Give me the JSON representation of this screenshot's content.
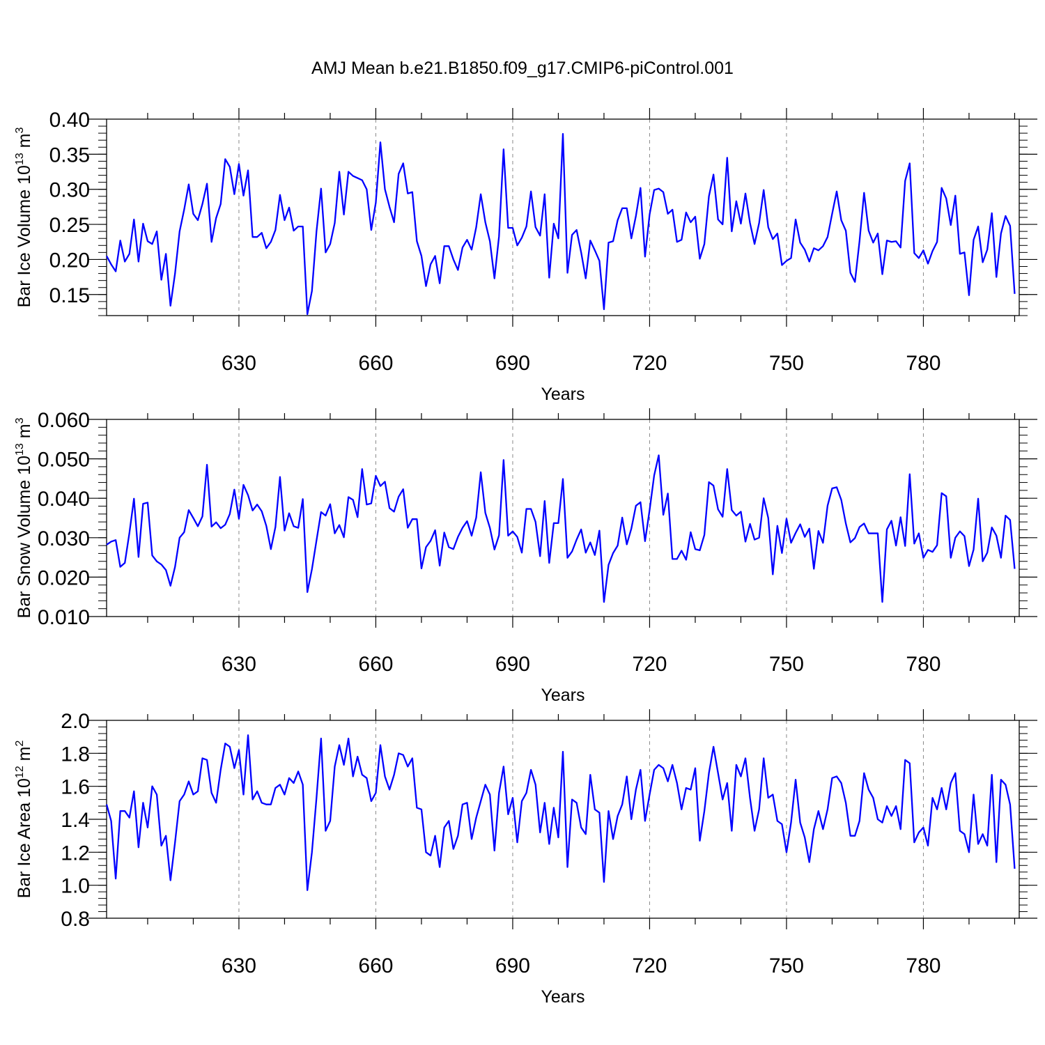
{
  "title": "AMJ Mean b.e21.B1850.f09_g17.CMIP6-piControl.001",
  "chart_data": [
    {
      "type": "line",
      "ylabel": {
        "prefix": "Bar Ice Volume 10",
        "exponent": "13",
        "unit": " m",
        "unit_exponent": "3"
      },
      "xlabel": "Years",
      "xlim": [
        601,
        801
      ],
      "ylim": [
        0.12,
        0.4
      ],
      "x_ticks": [
        630,
        660,
        690,
        720,
        750,
        780
      ],
      "x_tick_labels": [
        "630",
        "660",
        "690",
        "720",
        "750",
        "780"
      ],
      "y_ticks": [
        0.15,
        0.2,
        0.25,
        0.3,
        0.35,
        0.4
      ],
      "y_tick_labels": [
        "0.15",
        "0.20",
        "0.25",
        "0.30",
        "0.35",
        "0.40"
      ],
      "x_start": 601,
      "series": [
        {
          "name": "Bar Ice Volume",
          "color": "#0000ff",
          "values": [
            0.205,
            0.193,
            0.183,
            0.227,
            0.197,
            0.208,
            0.257,
            0.197,
            0.251,
            0.226,
            0.222,
            0.24,
            0.171,
            0.208,
            0.134,
            0.18,
            0.24,
            0.271,
            0.307,
            0.265,
            0.256,
            0.279,
            0.308,
            0.225,
            0.259,
            0.279,
            0.343,
            0.332,
            0.293,
            0.336,
            0.291,
            0.327,
            0.232,
            0.232,
            0.238,
            0.216,
            0.225,
            0.242,
            0.292,
            0.256,
            0.274,
            0.241,
            0.247,
            0.247,
            0.122,
            0.155,
            0.24,
            0.301,
            0.21,
            0.222,
            0.252,
            0.325,
            0.264,
            0.325,
            0.319,
            0.316,
            0.313,
            0.3,
            0.242,
            0.281,
            0.367,
            0.3,
            0.275,
            0.253,
            0.322,
            0.337,
            0.294,
            0.296,
            0.226,
            0.205,
            0.162,
            0.193,
            0.205,
            0.166,
            0.219,
            0.219,
            0.2,
            0.185,
            0.217,
            0.228,
            0.214,
            0.246,
            0.293,
            0.253,
            0.226,
            0.173,
            0.233,
            0.357,
            0.245,
            0.245,
            0.22,
            0.231,
            0.247,
            0.297,
            0.246,
            0.234,
            0.293,
            0.174,
            0.251,
            0.23,
            0.379,
            0.181,
            0.235,
            0.242,
            0.21,
            0.173,
            0.227,
            0.213,
            0.198,
            0.129,
            0.224,
            0.226,
            0.256,
            0.273,
            0.273,
            0.23,
            0.262,
            0.302,
            0.204,
            0.264,
            0.299,
            0.301,
            0.296,
            0.265,
            0.271,
            0.225,
            0.228,
            0.267,
            0.253,
            0.261,
            0.201,
            0.222,
            0.29,
            0.321,
            0.257,
            0.25,
            0.345,
            0.24,
            0.283,
            0.251,
            0.294,
            0.252,
            0.222,
            0.252,
            0.299,
            0.246,
            0.229,
            0.237,
            0.192,
            0.198,
            0.202,
            0.257,
            0.224,
            0.214,
            0.197,
            0.216,
            0.213,
            0.219,
            0.232,
            0.265,
            0.297,
            0.256,
            0.241,
            0.181,
            0.168,
            0.226,
            0.295,
            0.241,
            0.224,
            0.237,
            0.179,
            0.227,
            0.225,
            0.226,
            0.217,
            0.312,
            0.337,
            0.209,
            0.202,
            0.213,
            0.194,
            0.212,
            0.225,
            0.302,
            0.287,
            0.249,
            0.291,
            0.208,
            0.21,
            0.149,
            0.228,
            0.247,
            0.196,
            0.214,
            0.266,
            0.175,
            0.237,
            0.262,
            0.248,
            0.151
          ]
        }
      ]
    },
    {
      "type": "line",
      "ylabel": {
        "prefix": "Bar Snow Volume 10",
        "exponent": "13",
        "unit": " m",
        "unit_exponent": "3"
      },
      "xlabel": "Years",
      "xlim": [
        601,
        801
      ],
      "ylim": [
        0.01,
        0.06
      ],
      "x_ticks": [
        630,
        660,
        690,
        720,
        750,
        780
      ],
      "x_tick_labels": [
        "630",
        "660",
        "690",
        "720",
        "750",
        "780"
      ],
      "y_ticks": [
        0.01,
        0.02,
        0.03,
        0.04,
        0.05,
        0.06
      ],
      "y_tick_labels": [
        "0.010",
        "0.020",
        "0.030",
        "0.040",
        "0.050",
        "0.060"
      ],
      "x_start": 601,
      "series": [
        {
          "name": "Bar Snow Volume",
          "color": "#0000ff",
          "values": [
            0.0282,
            0.029,
            0.0294,
            0.0226,
            0.0236,
            0.0312,
            0.0399,
            0.0251,
            0.0386,
            0.0389,
            0.0255,
            0.024,
            0.0232,
            0.0218,
            0.0178,
            0.0226,
            0.03,
            0.0314,
            0.037,
            0.035,
            0.0329,
            0.0354,
            0.0485,
            0.0328,
            0.0339,
            0.0324,
            0.0333,
            0.036,
            0.0422,
            0.0348,
            0.0434,
            0.0408,
            0.0369,
            0.0384,
            0.0367,
            0.033,
            0.0271,
            0.0327,
            0.0454,
            0.0318,
            0.0362,
            0.0329,
            0.0325,
            0.0398,
            0.0162,
            0.022,
            0.0293,
            0.0365,
            0.0356,
            0.0385,
            0.0311,
            0.0332,
            0.0301,
            0.0403,
            0.0396,
            0.0352,
            0.0474,
            0.0384,
            0.0387,
            0.0457,
            0.0431,
            0.0442,
            0.0375,
            0.0366,
            0.0404,
            0.0423,
            0.0325,
            0.0347,
            0.0347,
            0.0222,
            0.0276,
            0.0292,
            0.0319,
            0.0229,
            0.0313,
            0.0276,
            0.0271,
            0.0302,
            0.0325,
            0.0342,
            0.0305,
            0.0351,
            0.0466,
            0.0363,
            0.0325,
            0.027,
            0.0306,
            0.0497,
            0.0305,
            0.0316,
            0.0302,
            0.0262,
            0.0373,
            0.0373,
            0.034,
            0.0253,
            0.0393,
            0.0236,
            0.0337,
            0.0337,
            0.0449,
            0.0249,
            0.0265,
            0.0295,
            0.0321,
            0.0262,
            0.0288,
            0.0256,
            0.0318,
            0.0137,
            0.0231,
            0.0261,
            0.028,
            0.0351,
            0.0283,
            0.0323,
            0.0381,
            0.039,
            0.0291,
            0.037,
            0.0458,
            0.0509,
            0.0358,
            0.0412,
            0.0246,
            0.0246,
            0.0267,
            0.0244,
            0.0314,
            0.0271,
            0.0268,
            0.0307,
            0.0441,
            0.0432,
            0.0372,
            0.0353,
            0.0474,
            0.037,
            0.0356,
            0.0366,
            0.029,
            0.0335,
            0.0295,
            0.03,
            0.04,
            0.035,
            0.0207,
            0.033,
            0.0261,
            0.0348,
            0.0287,
            0.0312,
            0.0334,
            0.0302,
            0.0323,
            0.0221,
            0.0317,
            0.0287,
            0.0381,
            0.0425,
            0.0428,
            0.0396,
            0.0336,
            0.0288,
            0.0299,
            0.0327,
            0.0336,
            0.0311,
            0.0311,
            0.0311,
            0.0137,
            0.0321,
            0.0343,
            0.028,
            0.0352,
            0.0279,
            0.0461,
            0.0285,
            0.0311,
            0.0249,
            0.0269,
            0.0264,
            0.0281,
            0.0413,
            0.0405,
            0.0249,
            0.03,
            0.0316,
            0.0304,
            0.0228,
            0.027,
            0.0399,
            0.024,
            0.0262,
            0.0326,
            0.0305,
            0.0249,
            0.0356,
            0.0345,
            0.0221
          ]
        }
      ]
    },
    {
      "type": "line",
      "ylabel": {
        "prefix": "Bar Ice Area 10",
        "exponent": "12",
        "unit": " m",
        "unit_exponent": "2"
      },
      "xlabel": "Years",
      "xlim": [
        601,
        801
      ],
      "ylim": [
        0.8,
        2.0
      ],
      "x_ticks": [
        630,
        660,
        690,
        720,
        750,
        780
      ],
      "x_tick_labels": [
        "630",
        "660",
        "690",
        "720",
        "750",
        "780"
      ],
      "y_ticks": [
        0.8,
        1.0,
        1.2,
        1.4,
        1.6,
        1.8,
        2.0
      ],
      "y_tick_labels": [
        "0.8",
        "1.0",
        "1.2",
        "1.4",
        "1.6",
        "1.8",
        "2.0"
      ],
      "x_start": 601,
      "series": [
        {
          "name": "Bar Ice Area",
          "color": "#0000ff",
          "values": [
            1.49,
            1.39,
            1.04,
            1.45,
            1.45,
            1.41,
            1.57,
            1.23,
            1.5,
            1.35,
            1.6,
            1.55,
            1.24,
            1.3,
            1.03,
            1.26,
            1.51,
            1.55,
            1.63,
            1.55,
            1.57,
            1.77,
            1.76,
            1.56,
            1.5,
            1.7,
            1.86,
            1.84,
            1.71,
            1.82,
            1.55,
            1.91,
            1.52,
            1.57,
            1.5,
            1.49,
            1.49,
            1.59,
            1.61,
            1.55,
            1.65,
            1.62,
            1.69,
            1.61,
            0.97,
            1.2,
            1.53,
            1.89,
            1.33,
            1.39,
            1.72,
            1.85,
            1.73,
            1.89,
            1.66,
            1.78,
            1.67,
            1.65,
            1.51,
            1.56,
            1.85,
            1.66,
            1.58,
            1.67,
            1.8,
            1.79,
            1.72,
            1.77,
            1.47,
            1.46,
            1.2,
            1.18,
            1.3,
            1.11,
            1.35,
            1.39,
            1.22,
            1.3,
            1.49,
            1.5,
            1.28,
            1.41,
            1.51,
            1.61,
            1.55,
            1.21,
            1.56,
            1.72,
            1.43,
            1.53,
            1.26,
            1.51,
            1.56,
            1.7,
            1.61,
            1.32,
            1.5,
            1.25,
            1.47,
            1.29,
            1.81,
            1.11,
            1.52,
            1.5,
            1.35,
            1.31,
            1.67,
            1.46,
            1.44,
            1.02,
            1.45,
            1.28,
            1.42,
            1.49,
            1.66,
            1.4,
            1.58,
            1.7,
            1.39,
            1.55,
            1.7,
            1.73,
            1.71,
            1.63,
            1.73,
            1.62,
            1.46,
            1.59,
            1.58,
            1.71,
            1.27,
            1.45,
            1.68,
            1.84,
            1.68,
            1.52,
            1.62,
            1.33,
            1.73,
            1.66,
            1.77,
            1.53,
            1.33,
            1.46,
            1.77,
            1.53,
            1.55,
            1.39,
            1.37,
            1.2,
            1.38,
            1.64,
            1.38,
            1.29,
            1.14,
            1.34,
            1.45,
            1.34,
            1.46,
            1.65,
            1.66,
            1.62,
            1.5,
            1.3,
            1.3,
            1.39,
            1.68,
            1.58,
            1.53,
            1.4,
            1.38,
            1.48,
            1.42,
            1.48,
            1.34,
            1.76,
            1.74,
            1.26,
            1.32,
            1.35,
            1.24,
            1.53,
            1.46,
            1.59,
            1.46,
            1.62,
            1.68,
            1.33,
            1.31,
            1.2,
            1.55,
            1.25,
            1.31,
            1.24,
            1.67,
            1.14,
            1.64,
            1.61,
            1.49,
            1.1
          ]
        }
      ]
    }
  ]
}
